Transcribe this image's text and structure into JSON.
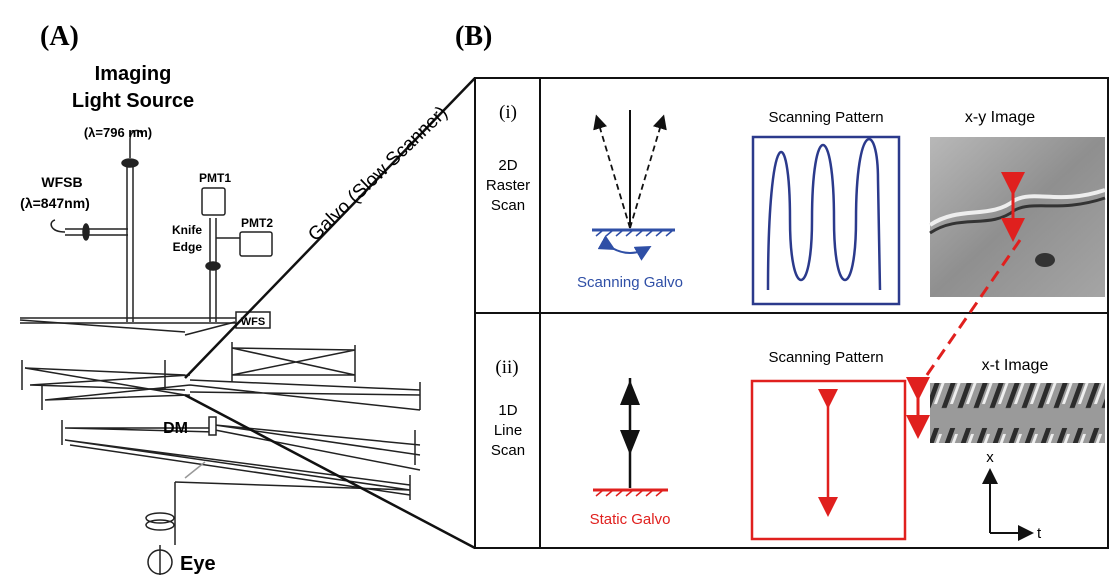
{
  "panel_a": {
    "label": "(A)",
    "light_source": [
      "Imaging",
      "Light Source"
    ],
    "light_source_wavelength": "(λ=796 nm)",
    "wfsb": "WFSB",
    "wfsb_wavelength": "(λ=847nm)",
    "pmt1": "PMT1",
    "pmt2": "PMT2",
    "knife_edge": [
      "Knife",
      "Edge"
    ],
    "wfs": "WFS",
    "dm": "DM",
    "eye": "Eye",
    "galvo": "Galvo (Slow Scanner)"
  },
  "panel_b": {
    "label": "(B)",
    "rows": [
      {
        "index": "(i)",
        "mode": [
          "2D",
          "Raster",
          "Scan"
        ],
        "galvo": "Scanning Galvo",
        "pattern_title": "Scanning Pattern",
        "image_title": "x-y Image"
      },
      {
        "index": "(ii)",
        "mode": [
          "1D",
          "Line",
          "Scan"
        ],
        "galvo": "Static Galvo",
        "pattern_title": "Scanning Pattern",
        "image_title": "x-t Image",
        "axis_x": "x",
        "axis_t": "t"
      }
    ]
  }
}
